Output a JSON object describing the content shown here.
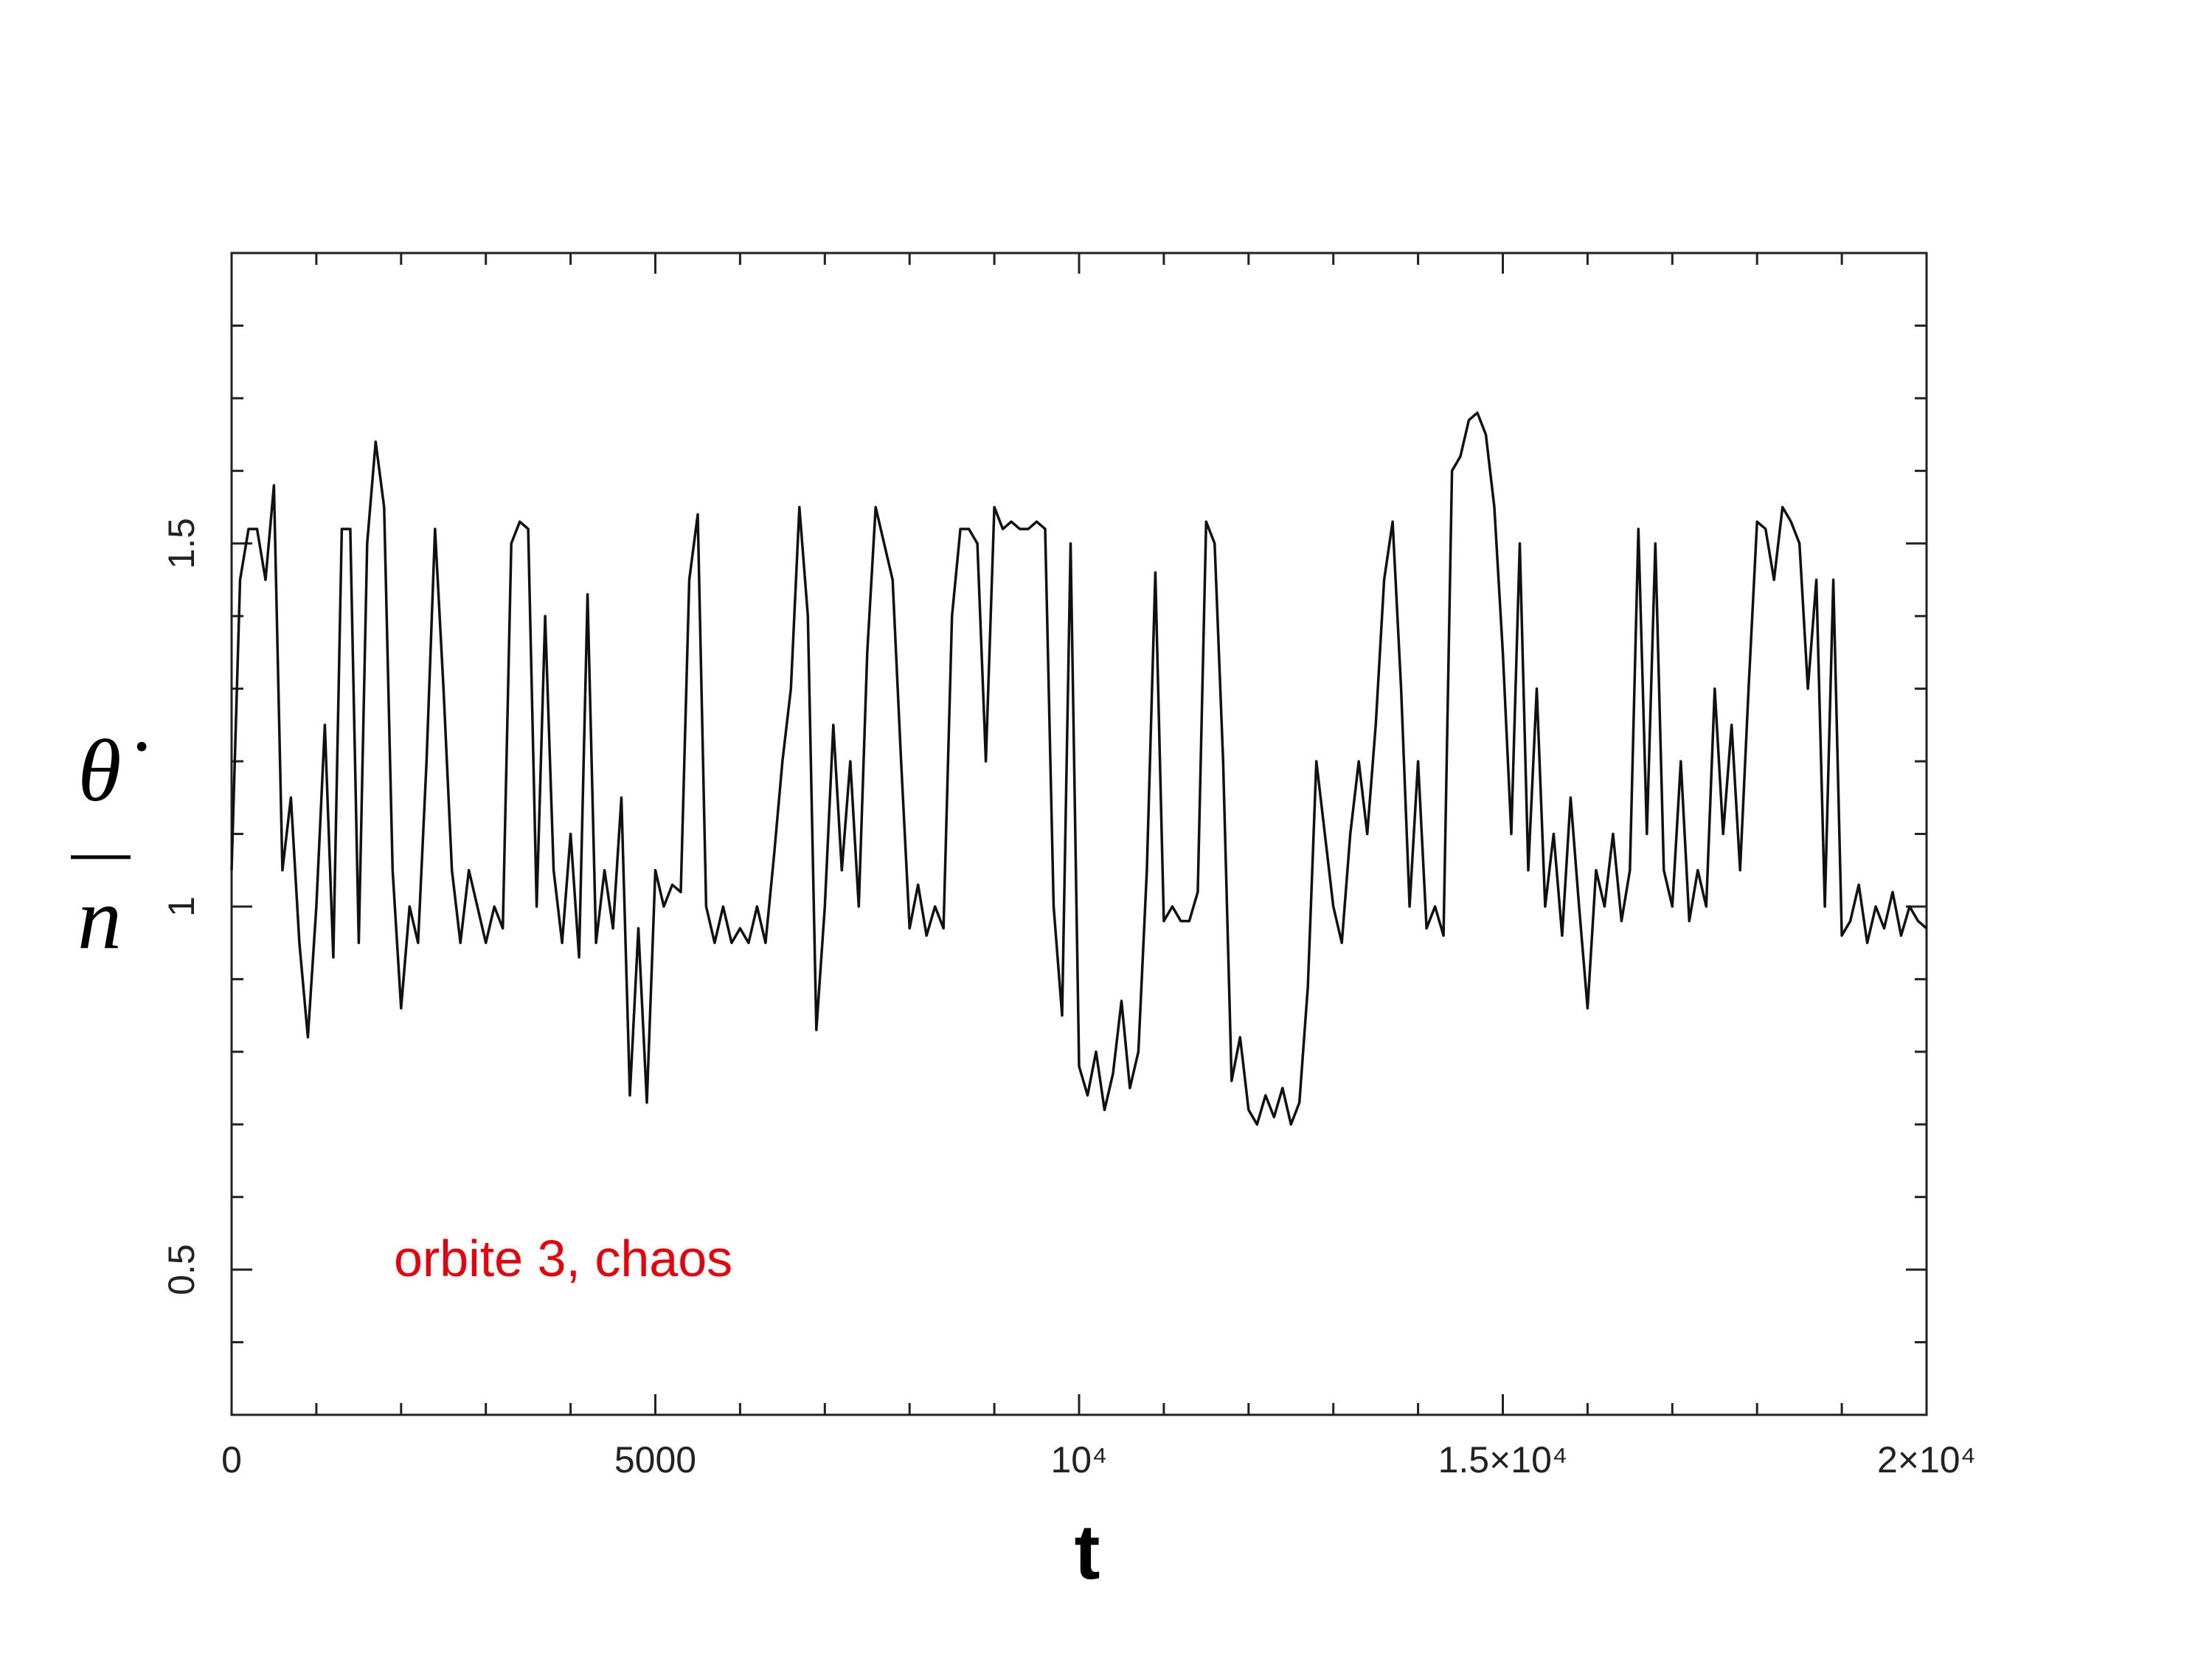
{
  "chart_data": {
    "type": "line",
    "ylabel_numerator": "θ̇",
    "ylabel_denominator": "n",
    "xlabel": "t",
    "annotation": "orbite 3, chaos",
    "annotation_color": "#e8000b",
    "xlim": [
      0,
      20000
    ],
    "ylim": [
      0.3,
      1.9
    ],
    "xticks": [
      0,
      5000,
      {
        "value": 10000,
        "label": "10⁴"
      },
      {
        "value": 15000,
        "label": "1.5×10⁴"
      },
      {
        "value": 20000,
        "label": "2×10⁴"
      }
    ],
    "yticks": [
      0.5,
      1,
      1.5
    ],
    "xminorticks": [
      1000,
      2000,
      3000,
      4000,
      6000,
      7000,
      8000,
      9000,
      11000,
      12000,
      13000,
      14000,
      16000,
      17000,
      18000,
      19000
    ],
    "yminorticks": [
      0.4,
      0.6,
      0.7,
      0.8,
      0.9,
      1.1,
      1.2,
      1.3,
      1.4,
      1.6,
      1.7,
      1.8
    ],
    "x": [
      0,
      100,
      200,
      300,
      400,
      500,
      600,
      700,
      800,
      900,
      1000,
      1100,
      1200,
      1300,
      1400,
      1500,
      1600,
      1700,
      1800,
      1900,
      2000,
      2100,
      2200,
      2300,
      2400,
      2500,
      2600,
      2700,
      2800,
      2900,
      3000,
      3100,
      3200,
      3300,
      3400,
      3500,
      3600,
      3700,
      3800,
      3900,
      4000,
      4100,
      4200,
      4300,
      4400,
      4500,
      4600,
      4700,
      4800,
      4900,
      5000,
      5100,
      5200,
      5300,
      5400,
      5500,
      5600,
      5700,
      5800,
      5900,
      6000,
      6100,
      6200,
      6300,
      6400,
      6500,
      6600,
      6700,
      6800,
      6900,
      7000,
      7100,
      7200,
      7300,
      7400,
      7500,
      7600,
      7700,
      7800,
      7900,
      8000,
      8100,
      8200,
      8300,
      8400,
      8500,
      8600,
      8700,
      8800,
      8900,
      9000,
      9100,
      9200,
      9300,
      9400,
      9500,
      9600,
      9700,
      9800,
      9900,
      10000,
      10100,
      10200,
      10300,
      10400,
      10500,
      10600,
      10700,
      10800,
      10900,
      11000,
      11100,
      11200,
      11300,
      11400,
      11500,
      11600,
      11700,
      11800,
      11900,
      12000,
      12100,
      12200,
      12300,
      12400,
      12500,
      12600,
      12700,
      12800,
      12900,
      13000,
      13100,
      13200,
      13300,
      13400,
      13500,
      13600,
      13700,
      13800,
      13900,
      14000,
      14100,
      14200,
      14300,
      14400,
      14500,
      14600,
      14700,
      14800,
      14900,
      15000,
      15100,
      15200,
      15300,
      15400,
      15500,
      15600,
      15700,
      15800,
      15900,
      16000,
      16100,
      16200,
      16300,
      16400,
      16500,
      16600,
      16700,
      16800,
      16900,
      17000,
      17100,
      17200,
      17300,
      17400,
      17500,
      17600,
      17700,
      17800,
      17900,
      18000,
      18100,
      18200,
      18300,
      18400,
      18500,
      18600,
      18700,
      18800,
      18900,
      19000,
      19100,
      19200,
      19300,
      19400,
      19500,
      19600,
      19700,
      19800,
      19900,
      20000
    ],
    "series": [
      {
        "color": "#111111",
        "values": [
          1.05,
          1.45,
          1.52,
          1.52,
          1.45,
          1.58,
          1.05,
          1.15,
          0.95,
          0.82,
          1.0,
          1.25,
          0.93,
          1.52,
          1.52,
          0.95,
          1.5,
          1.64,
          1.55,
          1.05,
          0.86,
          1.0,
          0.95,
          1.2,
          1.52,
          1.3,
          1.05,
          0.95,
          1.05,
          1.0,
          0.95,
          1.0,
          0.97,
          1.5,
          1.53,
          1.52,
          1.0,
          1.4,
          1.05,
          0.95,
          1.1,
          0.93,
          1.43,
          0.95,
          1.05,
          0.97,
          1.15,
          0.74,
          0.97,
          0.73,
          1.05,
          1.0,
          1.03,
          1.02,
          1.45,
          1.54,
          1.0,
          0.95,
          1.0,
          0.95,
          0.97,
          0.95,
          1.0,
          0.95,
          1.07,
          1.2,
          1.3,
          1.55,
          1.4,
          0.83,
          1.0,
          1.25,
          1.05,
          1.2,
          1.0,
          1.35,
          1.55,
          1.5,
          1.45,
          1.2,
          0.97,
          1.03,
          0.96,
          1.0,
          0.97,
          1.4,
          1.52,
          1.52,
          1.5,
          1.2,
          1.55,
          1.52,
          1.53,
          1.52,
          1.52,
          1.53,
          1.52,
          1.0,
          0.85,
          1.5,
          0.78,
          0.74,
          0.8,
          0.72,
          0.77,
          0.87,
          0.75,
          0.8,
          1.05,
          1.46,
          0.98,
          1.0,
          0.98,
          0.98,
          1.02,
          1.53,
          1.5,
          1.2,
          0.76,
          0.82,
          0.72,
          0.7,
          0.74,
          0.71,
          0.75,
          0.7,
          0.73,
          0.89,
          1.2,
          1.1,
          1.0,
          0.95,
          1.1,
          1.2,
          1.1,
          1.25,
          1.45,
          1.53,
          1.3,
          1.0,
          1.2,
          0.97,
          1.0,
          0.96,
          1.6,
          1.62,
          1.67,
          1.68,
          1.65,
          1.55,
          1.35,
          1.1,
          1.5,
          1.05,
          1.3,
          1.0,
          1.1,
          0.96,
          1.15,
          1.0,
          0.86,
          1.05,
          1.0,
          1.1,
          0.98,
          1.05,
          1.52,
          1.1,
          1.5,
          1.05,
          1.0,
          1.2,
          0.98,
          1.05,
          1.0,
          1.3,
          1.1,
          1.25,
          1.05,
          1.3,
          1.53,
          1.52,
          1.45,
          1.55,
          1.53,
          1.5,
          1.3,
          1.45,
          1.0,
          1.45,
          0.96,
          0.98,
          1.03,
          0.95,
          1.0,
          0.97,
          1.02,
          0.96,
          1.0,
          0.98,
          0.97
        ]
      }
    ]
  }
}
